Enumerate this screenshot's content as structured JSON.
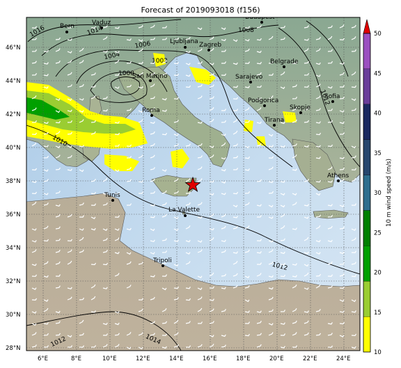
{
  "title": "Forecast of 2019093018 (f156)",
  "colorbar": {
    "label": "10 m wind speed (m/s)",
    "ticks": [
      "10",
      "15",
      "20",
      "25",
      "30",
      "35",
      "40",
      "45",
      "50"
    ],
    "colors": [
      "#ffff00",
      "#9acd32",
      "#00a000",
      "#008000",
      "#2e6e8e",
      "#27466e",
      "#1a2860",
      "#6a3d9a",
      "#9b4fc0"
    ],
    "extend_color": "#e00000"
  },
  "axes": {
    "lon_ticks": [
      "6°E",
      "8°E",
      "10°E",
      "12°E",
      "14°E",
      "16°E",
      "18°E",
      "20°E",
      "22°E",
      "24°E"
    ],
    "lat_ticks": [
      "46°N",
      "44°N",
      "42°N",
      "40°N",
      "38°N",
      "36°N",
      "34°N",
      "32°N",
      "30°N",
      "28°N"
    ]
  },
  "cities": [
    {
      "name": "Vaduz"
    },
    {
      "name": "Bern"
    },
    {
      "name": "Budapest"
    },
    {
      "name": "Ljubljana"
    },
    {
      "name": "Zagreb"
    },
    {
      "name": "Belgrade"
    },
    {
      "name": "San Marino"
    },
    {
      "name": "Sarajevo"
    },
    {
      "name": "Podgorica"
    },
    {
      "name": "Sofia"
    },
    {
      "name": "Skopje"
    },
    {
      "name": "Roma"
    },
    {
      "name": "Tirana"
    },
    {
      "name": "Athens"
    },
    {
      "name": "Tunis"
    },
    {
      "name": "La Valette"
    },
    {
      "name": "Tripoli"
    }
  ],
  "isobars": [
    "1016",
    "1014",
    "1012",
    "1006",
    "1004",
    "1002",
    "1000",
    "1008",
    "1010",
    "1012",
    "1012",
    "1014"
  ],
  "marker": {
    "icon": "red-star-icon",
    "color": "#e00000"
  }
}
